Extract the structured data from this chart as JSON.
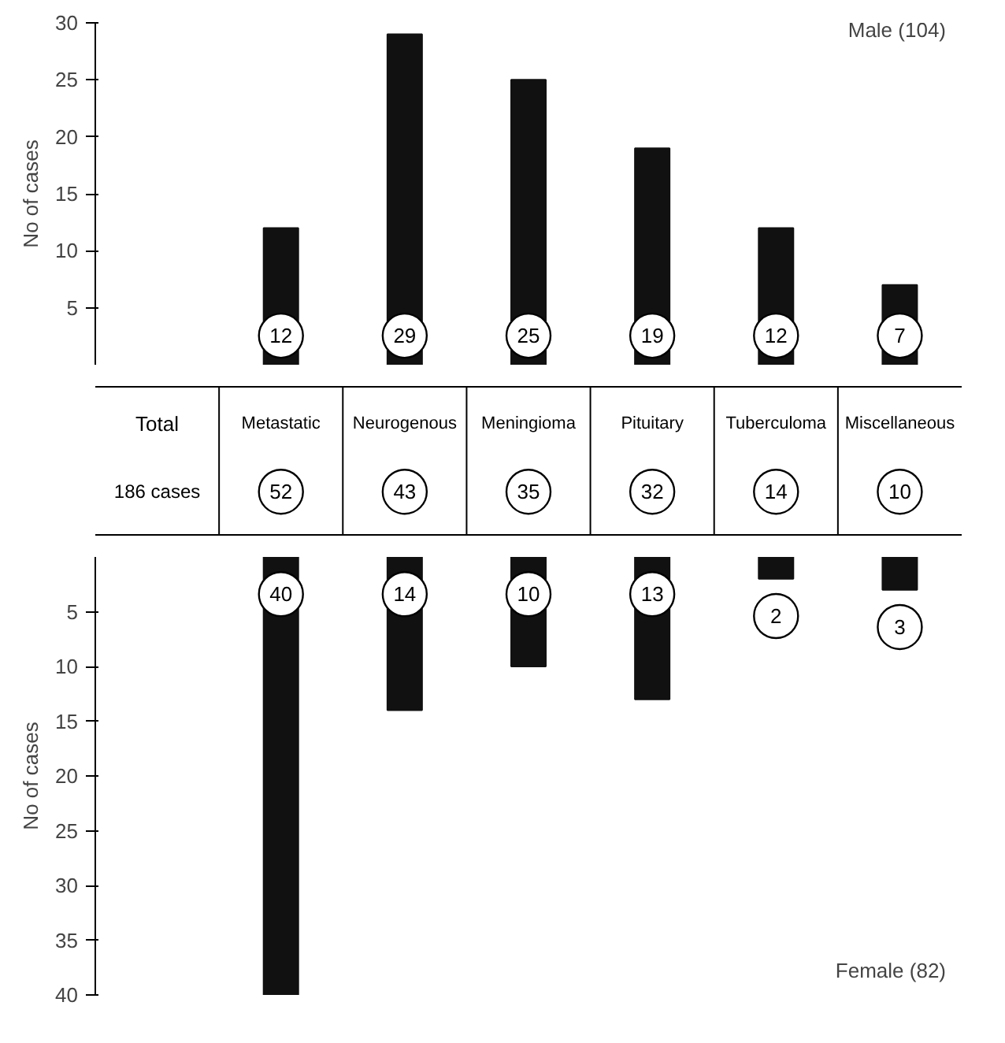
{
  "chart_data": [
    {
      "type": "bar",
      "categories": [
        null,
        null,
        null,
        null,
        null,
        null
      ],
      "values": [
        12,
        29,
        25,
        19,
        12,
        7
      ],
      "color": "#111111",
      "ylabel": "No of cases",
      "ylim": [
        0,
        30
      ],
      "yticks": [
        5,
        10,
        15,
        20,
        25,
        30
      ],
      "data_labels": true,
      "tick_labels": "y",
      "annotations": [
        "Male (104)"
      ]
    },
    {
      "type": "other",
      "title": "Total",
      "subtitle": "186 cases",
      "categories": [
        "Metastatic",
        "Neurogenous",
        "Meningioma",
        "Pituitary",
        "Tuberculoma",
        "Miscellaneous"
      ],
      "values": [
        52,
        43,
        35,
        32,
        14,
        10
      ],
      "data_labels": true
    },
    {
      "type": "bar",
      "categories": [
        null,
        null,
        null,
        null,
        null,
        null
      ],
      "values": [
        40,
        14,
        10,
        13,
        2,
        3
      ],
      "color": "#111111",
      "ylabel": "No of cases",
      "ylim": [
        40,
        0
      ],
      "yticks": [
        5,
        10,
        15,
        20,
        25,
        30,
        35,
        40
      ],
      "data_labels": true,
      "tick_labels": "y",
      "annotations": [
        "Female (82)"
      ]
    }
  ]
}
